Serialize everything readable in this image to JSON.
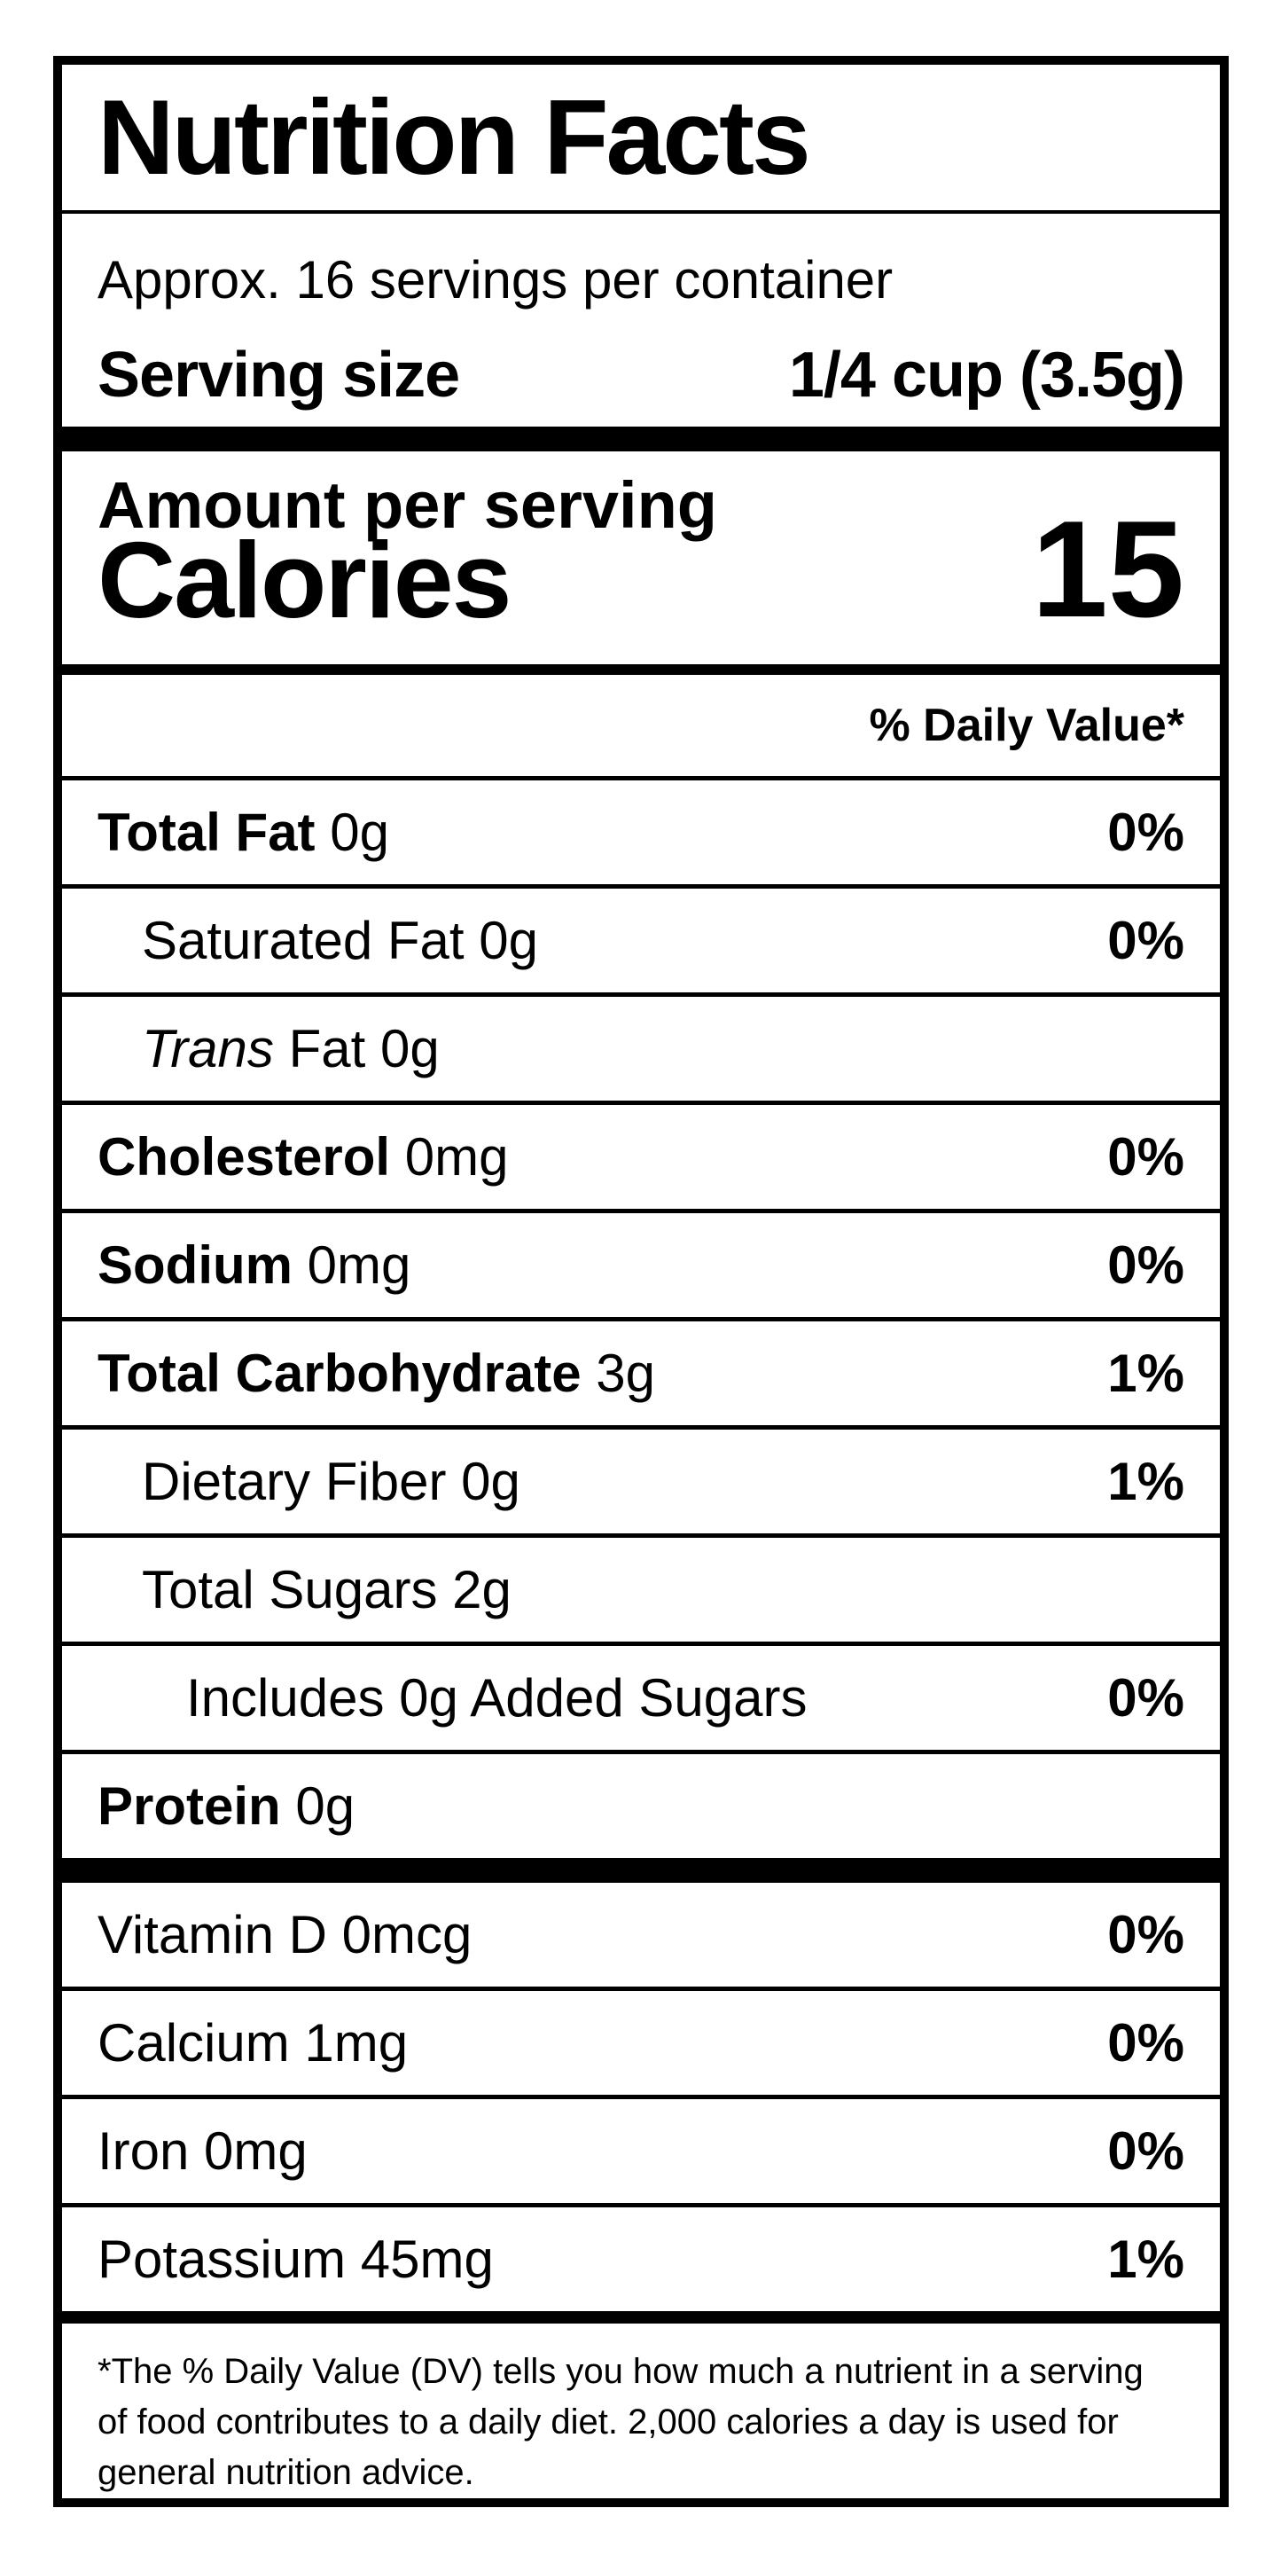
{
  "label": {
    "title": "Nutrition Facts",
    "servings_per_container": "Approx. 16 servings per container",
    "serving_size": {
      "label": "Serving size",
      "value": "1/4 cup (3.5g)"
    },
    "amount_per_serving": "Amount per serving",
    "calories": {
      "label": "Calories",
      "value": "15"
    },
    "daily_value_header": "% Daily Value*",
    "nutrients": [
      {
        "name": "Total Fat",
        "amount": "0g",
        "dv": "0%",
        "bold": true,
        "italic": false,
        "indent": 0
      },
      {
        "name": "Saturated Fat",
        "amount": "0g",
        "dv": "0%",
        "bold": false,
        "italic": false,
        "indent": 1
      },
      {
        "name": "Trans",
        "amount": "Fat 0g",
        "dv": "",
        "bold": false,
        "italic": true,
        "indent": 1
      },
      {
        "name": "Cholesterol",
        "amount": "0mg",
        "dv": "0%",
        "bold": true,
        "italic": false,
        "indent": 0
      },
      {
        "name": "Sodium",
        "amount": "0mg",
        "dv": "0%",
        "bold": true,
        "italic": false,
        "indent": 0
      },
      {
        "name": "Total Carbohydrate",
        "amount": "3g",
        "dv": "1%",
        "bold": true,
        "italic": false,
        "indent": 0
      },
      {
        "name": "Dietary Fiber",
        "amount": "0g",
        "dv": "1%",
        "bold": false,
        "italic": false,
        "indent": 1
      },
      {
        "name": "Total Sugars",
        "amount": "2g",
        "dv": "",
        "bold": false,
        "italic": false,
        "indent": 1
      },
      {
        "name": "Includes 0g Added Sugars",
        "amount": "",
        "dv": "0%",
        "bold": false,
        "italic": false,
        "indent": 2
      },
      {
        "name": "Protein",
        "amount": "0g",
        "dv": "",
        "bold": true,
        "italic": false,
        "indent": 0
      }
    ],
    "micronutrients": [
      {
        "name": "Vitamin D",
        "amount": "0mcg",
        "dv": "0%",
        "bold": false,
        "italic": false,
        "indent": 0
      },
      {
        "name": "Calcium",
        "amount": "1mg",
        "dv": "0%",
        "bold": false,
        "italic": false,
        "indent": 0
      },
      {
        "name": "Iron",
        "amount": "0mg",
        "dv": "0%",
        "bold": false,
        "italic": false,
        "indent": 0
      },
      {
        "name": "Potassium",
        "amount": "45mg",
        "dv": "1%",
        "bold": false,
        "italic": false,
        "indent": 0
      }
    ],
    "footnote_lines": [
      "*The % Daily Value (DV) tells you how much a nutrient in a serving",
      "of food contributes to a daily diet. 2,000 calories a day is used for",
      "general nutrition advice."
    ],
    "colors": {
      "ink": "#000000",
      "background": "#ffffff"
    }
  }
}
